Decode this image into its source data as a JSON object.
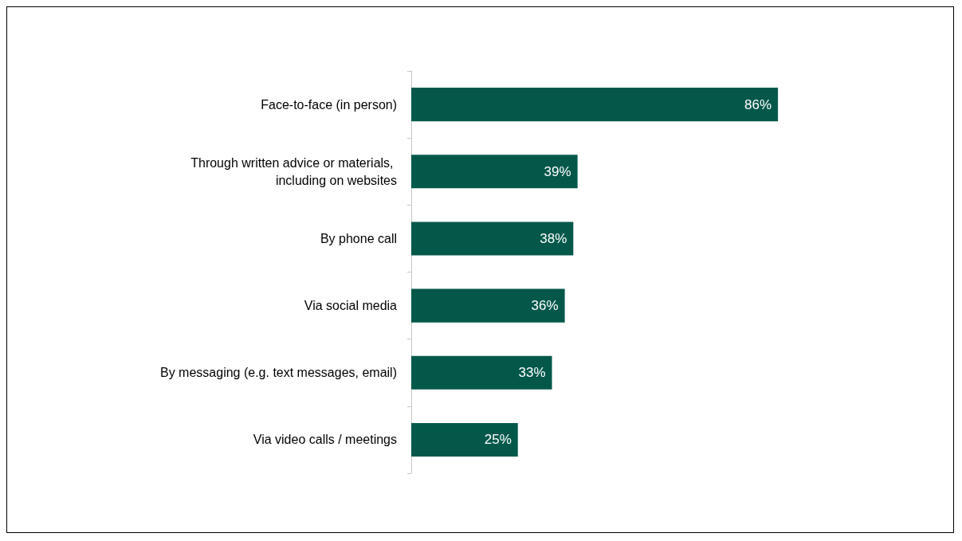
{
  "chart_data": {
    "type": "bar",
    "orientation": "horizontal",
    "categories": [
      "Face-to-face (in person)",
      "Through written advice or materials, including on websites",
      "By phone call",
      "Via social media",
      "By messaging (e.g. text messages, email)",
      "Via video calls / meetings"
    ],
    "values": [
      86,
      39,
      38,
      36,
      33,
      25
    ],
    "value_labels": [
      "86%",
      "39%",
      "38%",
      "36%",
      "33%",
      "25%"
    ],
    "color": "#03584a"
  }
}
